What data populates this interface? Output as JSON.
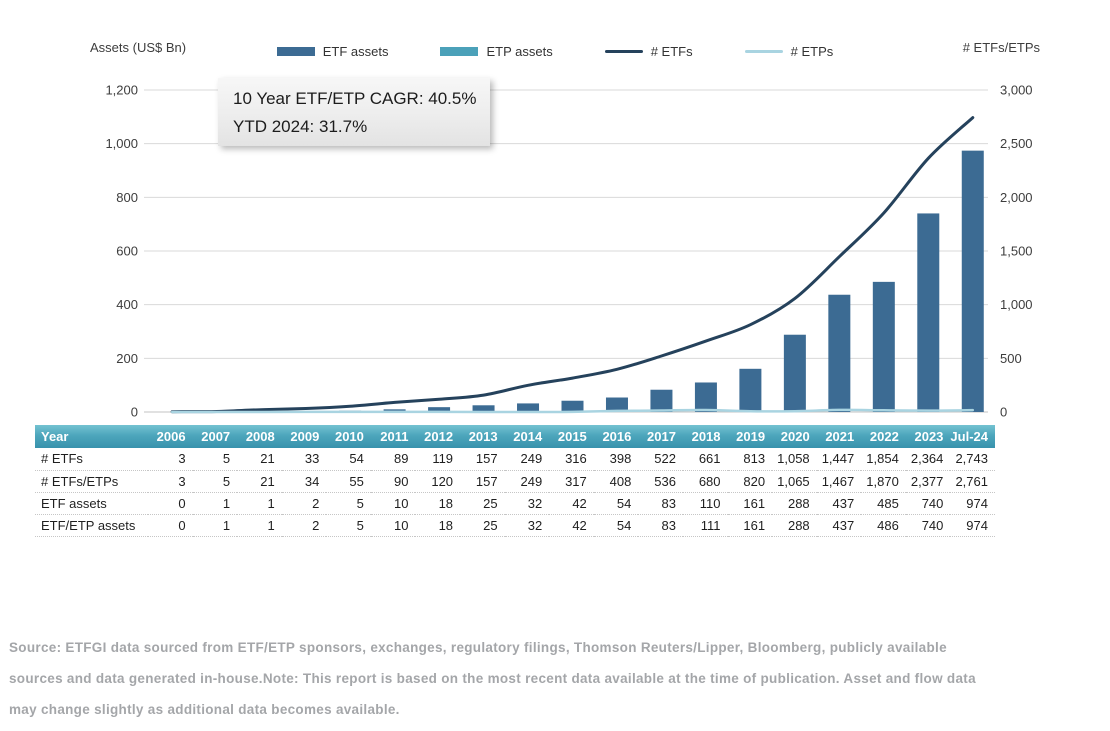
{
  "legend": {
    "items": [
      {
        "label": "ETF assets",
        "swatch": "bar",
        "color": "#3c6b93"
      },
      {
        "label": "ETP assets",
        "swatch": "bar",
        "color": "#4ba1b9"
      },
      {
        "label": "# ETFs",
        "swatch": "line",
        "color": "#25425c"
      },
      {
        "label": "# ETPs",
        "swatch": "line",
        "color": "#a9d4e1"
      }
    ]
  },
  "chart_data": {
    "type": "bar",
    "categories": [
      "2006",
      "2007",
      "2008",
      "2009",
      "2010",
      "2011",
      "2012",
      "2013",
      "2014",
      "2015",
      "2016",
      "2017",
      "2018",
      "2019",
      "2020",
      "2021",
      "2022",
      "2023",
      "Jul-24"
    ],
    "series": [
      {
        "name": "ETF assets",
        "type": "bar",
        "axis": "left",
        "color": "#3c6b93",
        "values": [
          0,
          1,
          1,
          2,
          5,
          10,
          18,
          25,
          32,
          42,
          54,
          83,
          110,
          161,
          288,
          437,
          485,
          740,
          974
        ]
      },
      {
        "name": "ETP assets",
        "type": "bar",
        "axis": "left",
        "color": "#4ba1b9",
        "values": [
          0,
          0,
          0,
          0,
          0,
          0,
          0,
          0,
          0,
          0,
          0,
          0,
          1,
          0,
          0,
          0,
          1,
          0,
          0
        ]
      },
      {
        "name": "# ETFs",
        "type": "line",
        "axis": "right",
        "color": "#25425c",
        "width": 3,
        "values": [
          3,
          5,
          21,
          33,
          54,
          89,
          119,
          157,
          249,
          316,
          398,
          522,
          661,
          813,
          1058,
          1447,
          1854,
          2364,
          2743
        ]
      },
      {
        "name": "# ETPs",
        "type": "line",
        "axis": "right",
        "color": "#a9d4e1",
        "width": 2.5,
        "values": [
          0,
          0,
          0,
          1,
          1,
          1,
          1,
          0,
          0,
          1,
          10,
          14,
          19,
          7,
          7,
          20,
          16,
          13,
          18
        ]
      }
    ],
    "left_axis": {
      "title": "Assets (US$ Bn)",
      "min": 0,
      "max": 1200,
      "step": 200,
      "tick_labels": [
        "0",
        "200",
        "400",
        "600",
        "800",
        "1,000",
        "1,200"
      ]
    },
    "right_axis": {
      "title": "# ETFs/ETPs",
      "min": 0,
      "max": 3000,
      "step": 500,
      "tick_labels": [
        "0",
        "500",
        "1,000",
        "1,500",
        "2,000",
        "2,500",
        "3,000"
      ]
    },
    "annotation": {
      "line1": "10 Year ETF/ETP CAGR: 40.5%",
      "line2": "YTD 2024: 31.7%"
    },
    "grid": "horizontal",
    "legend_position": "top",
    "colors": {
      "gridline": "#d9d9d9",
      "axis_text": "#3d3d3d"
    }
  },
  "table": {
    "header": [
      "Year",
      "2006",
      "2007",
      "2008",
      "2009",
      "2010",
      "2011",
      "2012",
      "2013",
      "2014",
      "2015",
      "2016",
      "2017",
      "2018",
      "2019",
      "2020",
      "2021",
      "2022",
      "2023",
      "Jul-24"
    ],
    "rows": [
      {
        "label": "# ETFs",
        "values": [
          "3",
          "5",
          "21",
          "33",
          "54",
          "89",
          "119",
          "157",
          "249",
          "316",
          "398",
          "522",
          "661",
          "813",
          "1,058",
          "1,447",
          "1,854",
          "2,364",
          "2,743"
        ]
      },
      {
        "label": "# ETFs/ETPs",
        "values": [
          "3",
          "5",
          "21",
          "34",
          "55",
          "90",
          "120",
          "157",
          "249",
          "317",
          "408",
          "536",
          "680",
          "820",
          "1,065",
          "1,467",
          "1,870",
          "2,377",
          "2,761"
        ]
      },
      {
        "label": "ETF assets",
        "values": [
          "0",
          "1",
          "1",
          "2",
          "5",
          "10",
          "18",
          "25",
          "32",
          "42",
          "54",
          "83",
          "110",
          "161",
          "288",
          "437",
          "485",
          "740",
          "974"
        ]
      },
      {
        "label": "ETF/ETP assets",
        "values": [
          "0",
          "1",
          "1",
          "2",
          "5",
          "10",
          "18",
          "25",
          "32",
          "42",
          "54",
          "83",
          "111",
          "161",
          "288",
          "437",
          "486",
          "740",
          "974"
        ]
      }
    ],
    "header_colors": {
      "top": "#74c2d1",
      "bottom": "#3892ac",
      "text": "#ffffff"
    }
  },
  "footer": {
    "lines": [
      "Source: ETFGI data sourced from ETF/ETP sponsors, exchanges, regulatory filings, Thomson Reuters/Lipper, Bloomberg, publicly available",
      "sources and data generated in-house.Note: This report is based on the most recent data available at the time of publication. Asset and flow data",
      "may change slightly as additional data becomes available."
    ],
    "color": "#a4a6a9"
  }
}
